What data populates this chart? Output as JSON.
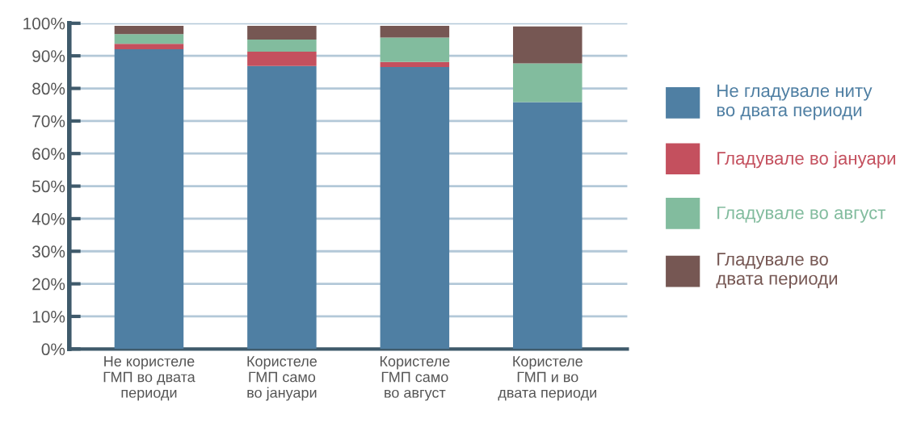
{
  "chart_data": {
    "type": "bar",
    "stacked": true,
    "categories": [
      "Не користеле\nГМП во двата\nпериоди",
      "Користеле\nГМП само\nво јануари",
      "Користеле\nГМП само\nво август",
      "Користеле\nГМП и во\nдвата периоди"
    ],
    "series": [
      {
        "name": "Не гладувале ниту\nво двата периоди",
        "color": "#4f7fa3",
        "values": [
          92,
          86.9,
          86.6,
          75.8
        ]
      },
      {
        "name": "Гладувале во јануари",
        "color": "#c4505e",
        "values": [
          1.7,
          4.4,
          1.5,
          0
        ]
      },
      {
        "name": "Гладувале во август",
        "color": "#82bc9e",
        "values": [
          3,
          3.7,
          7.5,
          11.9
        ]
      },
      {
        "name": "Гладувале во\nдвата периоди",
        "color": "#765753",
        "values": [
          2.5,
          4.2,
          3.6,
          11.3
        ]
      }
    ],
    "ylim": [
      0,
      100
    ],
    "yticks": [
      {
        "value": 0,
        "label": "0%"
      },
      {
        "value": 10,
        "label": "10%"
      },
      {
        "value": 20,
        "label": "20%"
      },
      {
        "value": 30,
        "label": "30%"
      },
      {
        "value": 40,
        "label": "40%"
      },
      {
        "value": 50,
        "label": "50%"
      },
      {
        "value": 60,
        "label": "60%"
      },
      {
        "value": 70,
        "label": "70%"
      },
      {
        "value": 80,
        "label": "80%"
      },
      {
        "value": 90,
        "label": "90%"
      },
      {
        "value": 100,
        "label": "100%"
      }
    ],
    "grid": "y",
    "legend": "right"
  }
}
